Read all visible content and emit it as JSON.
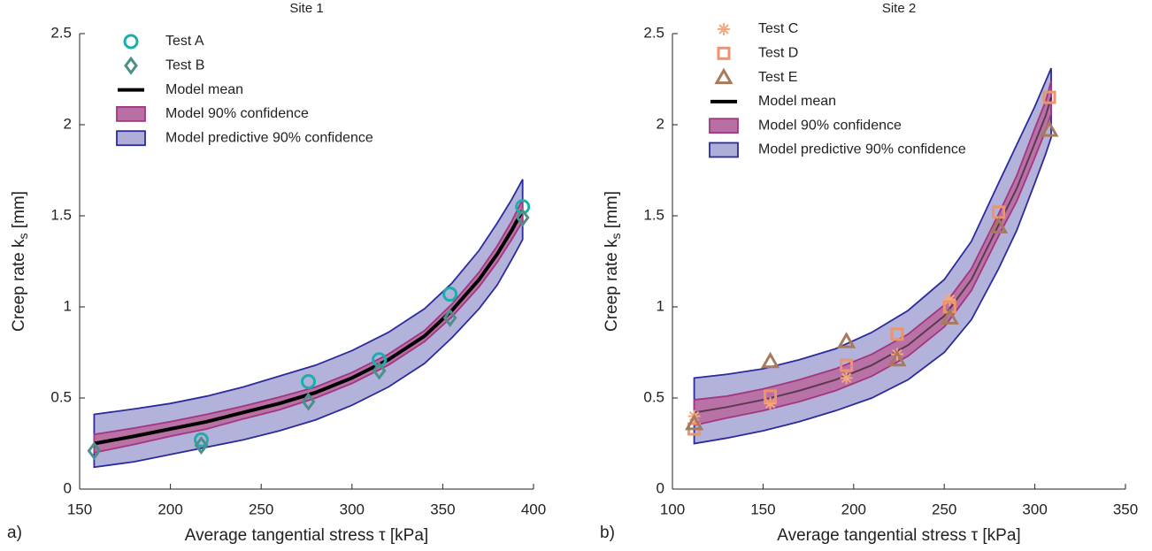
{
  "chart_data": [
    {
      "type": "scatter",
      "title": "Site 1",
      "panel_label": "a)",
      "xlabel": "Average tangential stress τ [kPa]",
      "ylabel": {
        "text": "Creep rate k",
        "subscript": "s",
        "unit": " [mm]"
      },
      "xlim": [
        150,
        400
      ],
      "xticks": [
        150,
        200,
        250,
        300,
        350,
        400
      ],
      "ylim": [
        0,
        2.5
      ],
      "yticks": [
        0,
        0.5,
        1,
        1.5,
        2,
        2.5
      ],
      "legend": "upper left",
      "series": [
        {
          "name": "Test A",
          "type": "scatter",
          "marker": "circle",
          "color": "#1aafaa",
          "x": [
            217,
            276,
            315,
            354,
            394
          ],
          "values": [
            0.27,
            0.59,
            0.71,
            1.07,
            1.55
          ]
        },
        {
          "name": "Test B",
          "type": "scatter",
          "marker": "diamond",
          "color": "#4f8f8a",
          "x": [
            158,
            217,
            276,
            315,
            354,
            394
          ],
          "values": [
            0.21,
            0.24,
            0.48,
            0.65,
            0.94,
            1.49
          ]
        },
        {
          "name": "Model mean",
          "type": "line",
          "color": "#000000",
          "x": [
            158,
            180,
            200,
            220,
            240,
            260,
            280,
            300,
            320,
            340,
            355,
            370,
            380,
            388,
            394
          ],
          "values": [
            0.25,
            0.29,
            0.33,
            0.37,
            0.42,
            0.47,
            0.53,
            0.61,
            0.71,
            0.84,
            0.98,
            1.15,
            1.29,
            1.42,
            1.53
          ]
        },
        {
          "name": "Model 90% confidence",
          "type": "band",
          "color": "#b86fa3",
          "edge": "#a2367f",
          "x": [
            158,
            180,
            200,
            220,
            240,
            260,
            280,
            300,
            320,
            340,
            355,
            370,
            380,
            388,
            394
          ],
          "lower": [
            0.2,
            0.245,
            0.29,
            0.33,
            0.385,
            0.435,
            0.5,
            0.58,
            0.68,
            0.81,
            0.945,
            1.11,
            1.245,
            1.37,
            1.47
          ],
          "upper": [
            0.3,
            0.335,
            0.37,
            0.41,
            0.455,
            0.505,
            0.56,
            0.64,
            0.74,
            0.87,
            1.015,
            1.19,
            1.335,
            1.47,
            1.59
          ]
        },
        {
          "name": "Model predictive 90% confidence",
          "type": "band",
          "color": "#aeaed9",
          "edge": "#2b2b9b",
          "x": [
            158,
            180,
            200,
            220,
            240,
            260,
            280,
            300,
            320,
            340,
            355,
            370,
            380,
            388,
            394
          ],
          "lower": [
            0.12,
            0.15,
            0.19,
            0.23,
            0.27,
            0.32,
            0.38,
            0.46,
            0.56,
            0.69,
            0.83,
            0.99,
            1.12,
            1.26,
            1.37
          ],
          "upper": [
            0.41,
            0.44,
            0.47,
            0.51,
            0.56,
            0.62,
            0.68,
            0.76,
            0.86,
            0.99,
            1.13,
            1.31,
            1.46,
            1.59,
            1.7
          ]
        }
      ]
    },
    {
      "type": "scatter",
      "title": "Site 2",
      "panel_label": "b)",
      "xlabel": "Average tangential stress τ [kPa]",
      "ylabel": {
        "text": "Creep rate k",
        "subscript": "s",
        "unit": " [mm]"
      },
      "xlim": [
        100,
        350
      ],
      "xticks": [
        100,
        150,
        200,
        250,
        300,
        350
      ],
      "ylim": [
        0,
        2.5
      ],
      "yticks": [
        0,
        0.5,
        1,
        1.5,
        2,
        2.5
      ],
      "legend": "upper left",
      "series": [
        {
          "name": "Test C",
          "type": "scatter",
          "marker": "asterisk",
          "color": "#f5a97f",
          "x": [
            112,
            154,
            196,
            224,
            253
          ],
          "values": [
            0.4,
            0.47,
            0.61,
            0.74,
            1.04
          ]
        },
        {
          "name": "Test D",
          "type": "scatter",
          "marker": "square",
          "color": "#ef936b",
          "x": [
            112,
            154,
            196,
            224,
            253,
            280,
            308
          ],
          "values": [
            0.33,
            0.51,
            0.68,
            0.85,
            1.0,
            1.52,
            2.15
          ]
        },
        {
          "name": "Test E",
          "type": "scatter",
          "marker": "triangle",
          "color": "#a77a5c",
          "x": [
            112,
            154,
            196,
            224,
            253,
            280,
            308
          ],
          "values": [
            0.36,
            0.7,
            0.81,
            0.71,
            0.94,
            1.44,
            1.97
          ]
        },
        {
          "name": "Model mean",
          "type": "line",
          "color": "#000000",
          "x": [
            112,
            130,
            150,
            170,
            190,
            210,
            230,
            250,
            265,
            280,
            290,
            300,
            306,
            309
          ],
          "values": [
            0.42,
            0.45,
            0.49,
            0.54,
            0.6,
            0.68,
            0.79,
            0.95,
            1.15,
            1.45,
            1.65,
            1.9,
            2.05,
            2.15
          ]
        },
        {
          "name": "Model 90% confidence",
          "type": "band",
          "color": "#b86fa3",
          "edge": "#a2367f",
          "x": [
            112,
            130,
            150,
            170,
            190,
            210,
            230,
            250,
            265,
            280,
            290,
            300,
            306,
            309
          ],
          "lower": [
            0.35,
            0.39,
            0.43,
            0.48,
            0.54,
            0.62,
            0.73,
            0.89,
            1.09,
            1.39,
            1.58,
            1.82,
            1.97,
            2.06
          ],
          "upper": [
            0.49,
            0.51,
            0.55,
            0.6,
            0.66,
            0.74,
            0.85,
            1.01,
            1.21,
            1.51,
            1.72,
            1.98,
            2.13,
            2.24
          ]
        },
        {
          "name": "Model predictive 90% confidence",
          "type": "band",
          "color": "#aeaed9",
          "edge": "#2b2b9b",
          "x": [
            112,
            130,
            150,
            170,
            190,
            210,
            230,
            250,
            265,
            280,
            290,
            300,
            306,
            309
          ],
          "lower": [
            0.25,
            0.28,
            0.32,
            0.37,
            0.43,
            0.5,
            0.6,
            0.75,
            0.93,
            1.21,
            1.42,
            1.68,
            1.84,
            1.93
          ],
          "upper": [
            0.61,
            0.63,
            0.66,
            0.71,
            0.77,
            0.86,
            0.98,
            1.15,
            1.36,
            1.68,
            1.89,
            2.1,
            2.24,
            2.31
          ]
        }
      ]
    }
  ]
}
